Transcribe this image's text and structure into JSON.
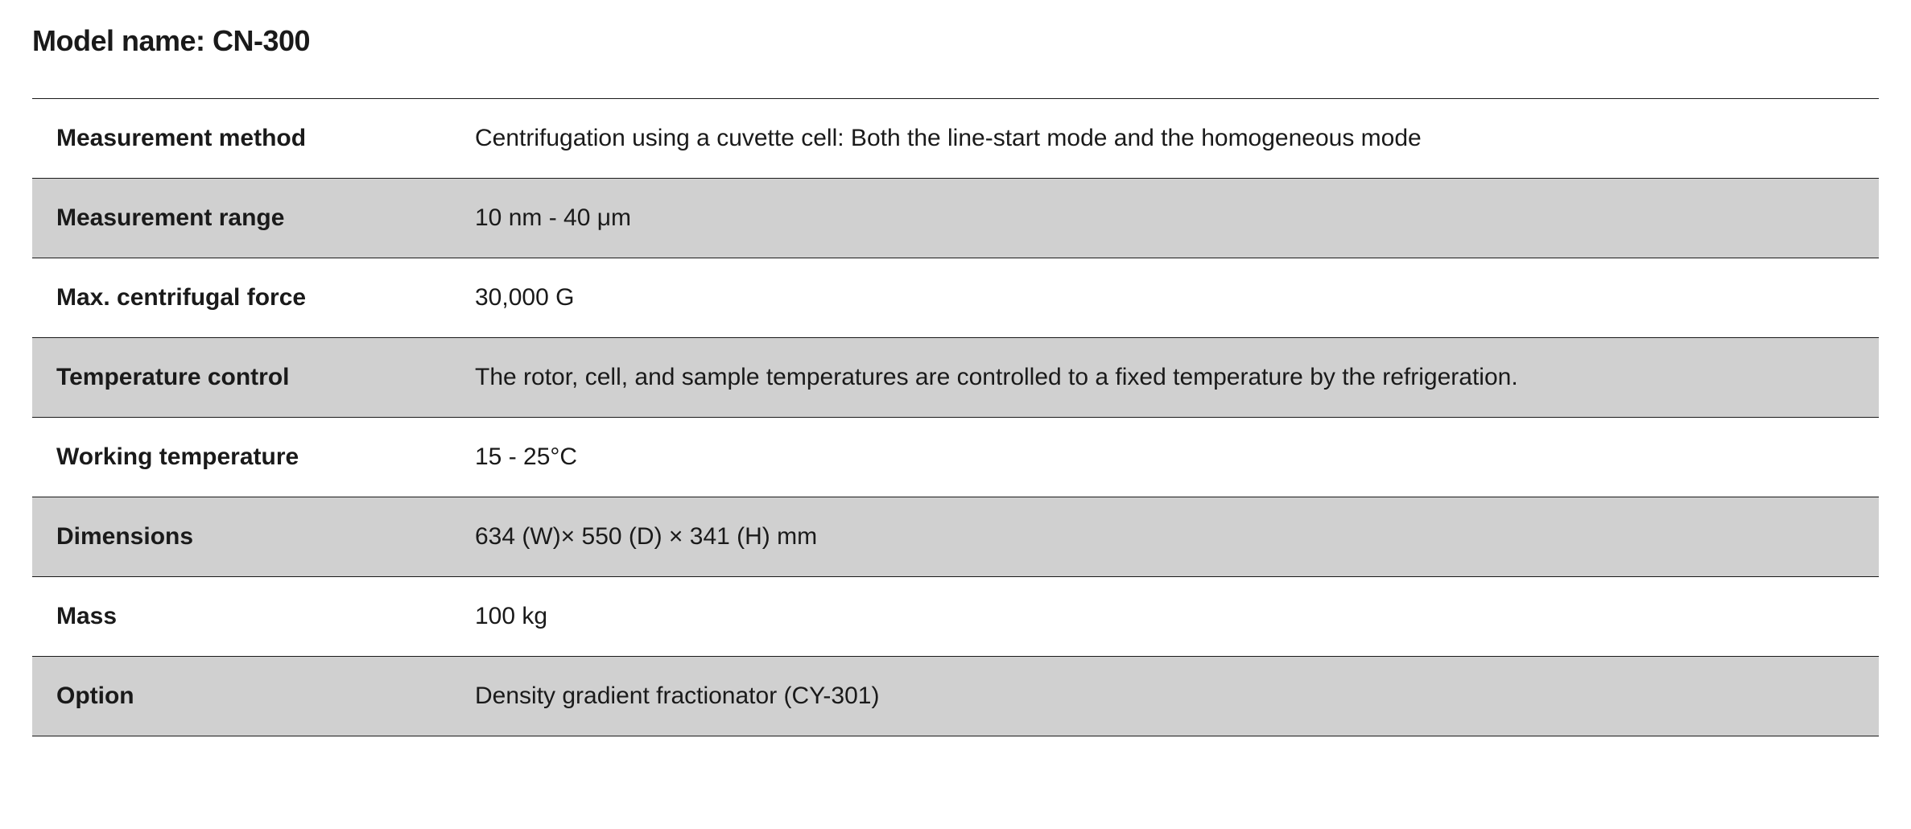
{
  "title": {
    "label": "Model name: ",
    "value": "CN-300"
  },
  "table": {
    "type": "table",
    "background_color": "#ffffff",
    "row_alt_color": "#d0d0d0",
    "border_color": "#1a1a1a",
    "label_font_weight": 700,
    "value_font_weight": 400,
    "font_size": 30,
    "label_column_width": 520,
    "rows": [
      {
        "label": "Measurement method",
        "value": "Centrifugation using a cuvette cell: Both the line-start mode and the homogeneous mode"
      },
      {
        "label": "Measurement range",
        "value": "10 nm - 40 μm"
      },
      {
        "label": "Max. centrifugal force",
        "value": "30,000 G"
      },
      {
        "label": "Temperature control",
        "value": "The rotor, cell, and sample temperatures are controlled to a fixed temperature by the refrigeration."
      },
      {
        "label": "Working temperature",
        "value": "15 - 25°C"
      },
      {
        "label": "Dimensions",
        "value": "634 (W)× 550 (D) × 341 (H) mm"
      },
      {
        "label": "Mass",
        "value": "100 kg"
      },
      {
        "label": "Option",
        "value": "Density gradient fractionator (CY-301)"
      }
    ]
  }
}
